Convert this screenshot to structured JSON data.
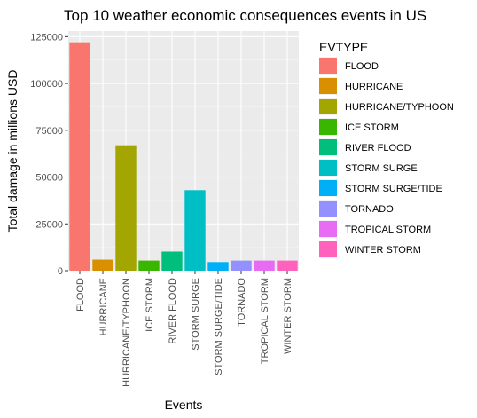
{
  "chart_data": {
    "type": "bar",
    "title": "Top 10 weather economic consequences events in US",
    "xlabel": "Events",
    "ylabel": "Total damage in millions USD",
    "ylim": [
      0,
      128000
    ],
    "yticks": [
      0,
      25000,
      50000,
      75000,
      100000,
      125000
    ],
    "ytick_labels": [
      "0",
      "25000",
      "50000",
      "75000",
      "100000",
      "125000"
    ],
    "grid": true,
    "legend_title": "EVTYPE",
    "legend_position": "right",
    "categories": [
      "FLOOD",
      "HURRICANE",
      "HURRICANE/TYPHOON",
      "ICE STORM",
      "RIVER FLOOD",
      "STORM SURGE",
      "STORM SURGE/TIDE",
      "TORNADO",
      "TROPICAL STORM",
      "WINTER STORM"
    ],
    "values": [
      122000,
      5900,
      67000,
      5400,
      10200,
      43000,
      4600,
      5400,
      5400,
      5400
    ],
    "colors": [
      "#F8766D",
      "#D89000",
      "#A3A500",
      "#39B600",
      "#00BF7D",
      "#00BFC4",
      "#00B0F6",
      "#9590FF",
      "#E76BF3",
      "#FF62BC"
    ]
  }
}
